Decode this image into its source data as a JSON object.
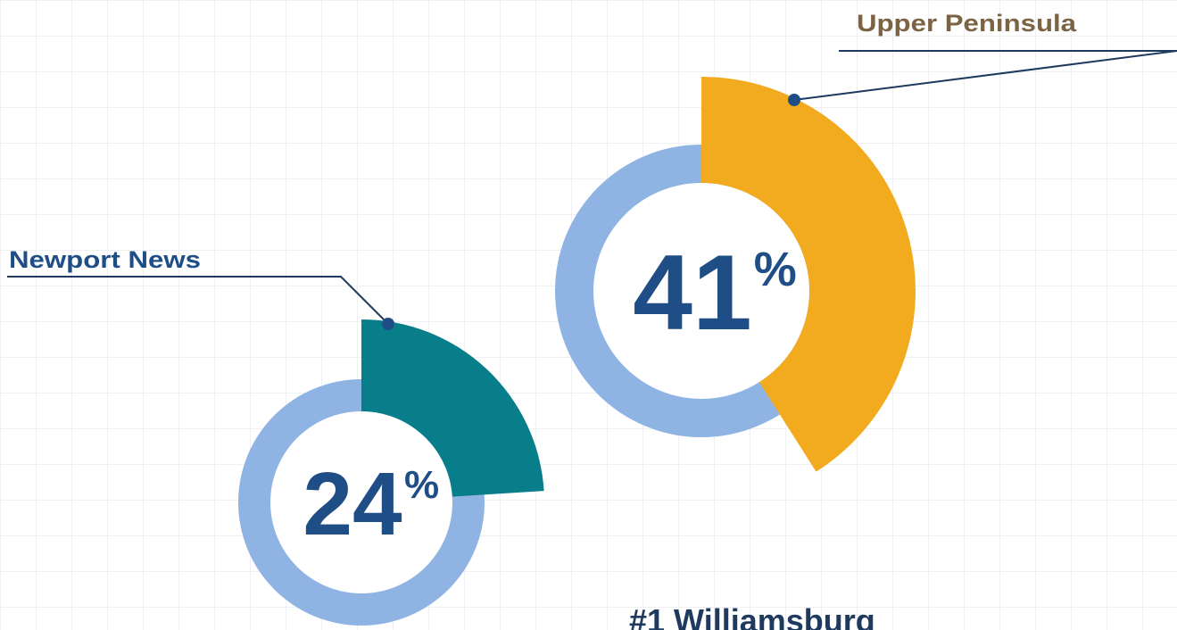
{
  "chart_data": [
    {
      "type": "donut",
      "label": "Newport News",
      "values": [
        24
      ],
      "unit": "%",
      "color": "#077e8a",
      "ring_color": "#8fb4e3",
      "label_color": "#1f4e87"
    },
    {
      "type": "donut",
      "label": "Upper Peninsula",
      "values": [
        41
      ],
      "unit": "%",
      "color": "#f2ab1f",
      "ring_color": "#8fb4e3",
      "label_color": "#7b6343"
    }
  ],
  "footer": {
    "title": "#1 Williamsburg"
  }
}
